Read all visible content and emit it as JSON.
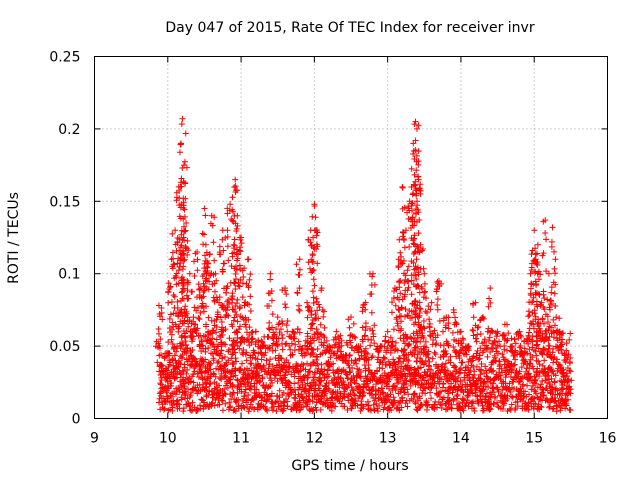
{
  "chart_data": {
    "type": "scatter",
    "title": "Day 047 of 2015, Rate Of TEC Index for receiver invr",
    "xlabel": "GPS time / hours",
    "ylabel": "ROTI / TECUs",
    "xlim": [
      9,
      16
    ],
    "ylim": [
      0,
      0.25
    ],
    "xticks": [
      "9",
      "10",
      "11",
      "12",
      "13",
      "14",
      "15",
      "16"
    ],
    "yticks": [
      "0",
      "0.05",
      "0.1",
      "0.15",
      "0.2",
      "0.25"
    ],
    "grid": true,
    "marker": "plus",
    "marker_color": "#ff0000",
    "series": [
      {
        "name": "ROTI",
        "x": [
          9.88,
          9.9,
          9.92,
          10.0,
          10.05,
          10.1,
          10.15,
          10.18,
          10.2,
          10.22,
          10.25,
          10.3,
          10.35,
          10.4,
          10.45,
          10.5,
          10.52,
          10.55,
          10.6,
          10.65,
          10.7,
          10.75,
          10.8,
          10.85,
          10.9,
          10.92,
          10.95,
          11.0,
          11.05,
          11.1,
          11.2,
          11.3,
          11.4,
          11.5,
          11.6,
          11.7,
          11.8,
          11.9,
          11.95,
          12.0,
          12.02,
          12.1,
          12.2,
          12.3,
          12.4,
          12.5,
          12.6,
          12.7,
          12.8,
          12.9,
          13.0,
          13.1,
          13.15,
          13.2,
          13.25,
          13.3,
          13.35,
          13.38,
          13.4,
          13.42,
          13.45,
          13.5,
          13.6,
          13.7,
          13.8,
          13.9,
          14.0,
          14.1,
          14.2,
          14.3,
          14.4,
          14.5,
          14.6,
          14.7,
          14.8,
          14.9,
          14.95,
          15.0,
          15.02,
          15.05,
          15.1,
          15.15,
          15.2,
          15.25,
          15.3,
          15.35,
          15.4,
          15.45,
          15.48
        ],
        "y": [
          0.078,
          0.03,
          0.012,
          0.045,
          0.11,
          0.13,
          0.16,
          0.19,
          0.207,
          0.175,
          0.135,
          0.1,
          0.07,
          0.115,
          0.09,
          0.145,
          0.12,
          0.06,
          0.14,
          0.1,
          0.08,
          0.13,
          0.09,
          0.148,
          0.12,
          0.165,
          0.14,
          0.125,
          0.08,
          0.11,
          0.06,
          0.05,
          0.1,
          0.07,
          0.09,
          0.06,
          0.11,
          0.08,
          0.13,
          0.148,
          0.13,
          0.09,
          0.05,
          0.06,
          0.04,
          0.07,
          0.05,
          0.08,
          0.1,
          0.05,
          0.06,
          0.09,
          0.11,
          0.16,
          0.13,
          0.15,
          0.19,
          0.205,
          0.2,
          0.165,
          0.12,
          0.1,
          0.08,
          0.095,
          0.07,
          0.075,
          0.06,
          0.05,
          0.08,
          0.07,
          0.09,
          0.06,
          0.065,
          0.05,
          0.06,
          0.055,
          0.1,
          0.13,
          0.11,
          0.12,
          0.08,
          0.137,
          0.1,
          0.132,
          0.07,
          0.06,
          0.03,
          0.025,
          0.02
        ]
      }
    ],
    "dense_band": {
      "description_values": [
        9.88,
        15.5
      ],
      "baseline_min": 0.005,
      "baseline_max": 0.045
    }
  }
}
